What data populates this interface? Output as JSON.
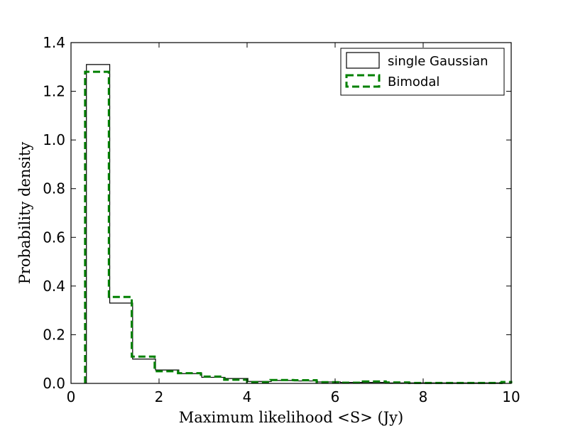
{
  "chart_data": {
    "type": "histogram",
    "xlabel": "Maximum likelihood <S> (Jy)",
    "ylabel": "Probability density",
    "xlim": [
      0,
      10
    ],
    "ylim": [
      0,
      1.4
    ],
    "xticks": [
      "0",
      "2",
      "4",
      "6",
      "8",
      "10"
    ],
    "yticks": [
      "0.0",
      "0.2",
      "0.4",
      "0.6",
      "0.8",
      "1.0",
      "1.2",
      "1.4"
    ],
    "grid": false,
    "legend_position": "top-right",
    "series": [
      {
        "name": "single Gaussian",
        "style": "solid",
        "color": "#000000",
        "bin_edges": [
          0.35,
          0.88,
          1.4,
          1.92,
          2.45,
          2.97,
          3.5,
          4.02,
          4.55,
          5.07,
          5.6,
          6.12,
          6.65,
          7.17,
          7.7,
          8.22,
          8.75,
          9.27,
          9.8
        ],
        "values": [
          1.31,
          0.33,
          0.1,
          0.055,
          0.04,
          0.025,
          0.02,
          0.008,
          0.012,
          0.01,
          0.006,
          0.004,
          0.004,
          0.002,
          0.002,
          0.002,
          0.002,
          0.002
        ]
      },
      {
        "name": "Bimodal",
        "style": "dashed",
        "color": "#008000",
        "bin_edges": [
          0.32,
          0.86,
          1.38,
          1.9,
          2.43,
          2.95,
          3.48,
          4.0,
          4.53,
          5.05,
          5.58,
          6.1,
          6.63,
          7.15,
          7.68,
          8.2,
          8.73,
          9.25,
          9.78,
          10.0
        ],
        "values": [
          1.28,
          0.355,
          0.11,
          0.05,
          0.042,
          0.028,
          0.015,
          0.005,
          0.014,
          0.013,
          0.005,
          0.003,
          0.008,
          0.004,
          0.002,
          0.002,
          0.002,
          0.002,
          0.006
        ]
      }
    ]
  }
}
